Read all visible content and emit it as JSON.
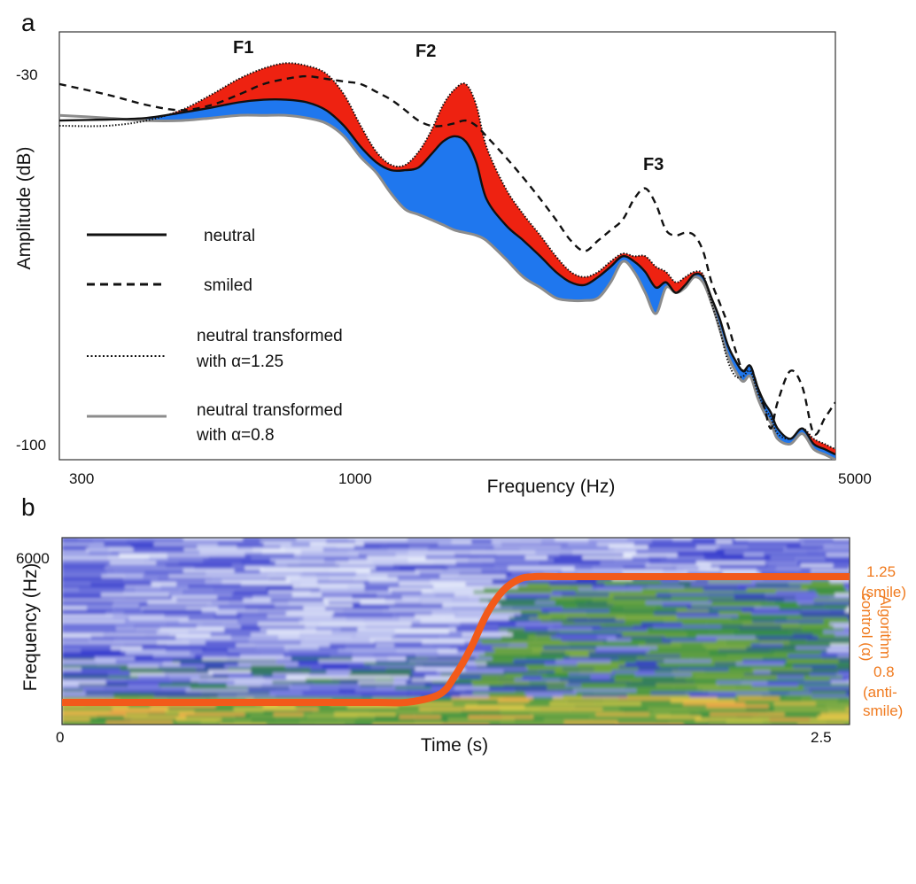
{
  "panel_a": {
    "letter": "a",
    "ylabel": "Amplitude (dB)",
    "xlabel": "Frequency (Hz)",
    "y_ticks": [
      "-30",
      "-100"
    ],
    "x_ticks": [
      "300",
      "1000",
      "5000"
    ],
    "formants": [
      "F1",
      "F2",
      "F3"
    ],
    "legend": [
      {
        "label": "neutral",
        "style": "solid-black"
      },
      {
        "label": "smiled",
        "style": "dashed-black"
      },
      {
        "label": "neutral transformed",
        "label2": "with α=1.25",
        "style": "dotted-black"
      },
      {
        "label": "neutral transformed",
        "label2": "with α=0.8",
        "style": "solid-gray"
      }
    ],
    "colors": {
      "above_neutral": "#ee2211",
      "below_neutral": "#1f77ee"
    }
  },
  "panel_b": {
    "letter": "b",
    "ylabel": "Frequency (Hz)",
    "xlabel": "Time (s)",
    "y_ticks": [
      "6000"
    ],
    "x_ticks": [
      "0",
      "2.5"
    ],
    "right_labels": {
      "high_value": "1.25",
      "high_desc": "(smile)",
      "axis_title_1": "Algorithm",
      "axis_title_2": "control (α)",
      "low_value": "0.8",
      "low_desc_1": "(anti-",
      "low_desc_2": "smile)"
    },
    "control_color": "#f25a1a"
  },
  "chart_data": [
    {
      "type": "line",
      "title": "",
      "xlabel": "Frequency (Hz)",
      "ylabel": "Amplitude (dB)",
      "x_scale": "log",
      "xlim": [
        250,
        5000
      ],
      "ylim": [
        -102,
        -20
      ],
      "grid": false,
      "legend_position": "left",
      "x": [
        250,
        300,
        350,
        400,
        450,
        500,
        550,
        600,
        650,
        700,
        750,
        800,
        850,
        900,
        950,
        1000,
        1050,
        1100,
        1150,
        1200,
        1250,
        1300,
        1400,
        1500,
        1600,
        1700,
        1800,
        1900,
        2000,
        2100,
        2200,
        2300,
        2400,
        2500,
        2600,
        2700,
        2800,
        2900,
        3000,
        3100,
        3200,
        3300,
        3400,
        3500,
        3600,
        3700,
        3800,
        3900,
        4000,
        4200,
        4400,
        4600,
        4800,
        5000
      ],
      "series": [
        {
          "name": "neutral",
          "values": [
            -37,
            -36.8,
            -36.5,
            -35.5,
            -34.5,
            -33.5,
            -33,
            -33,
            -33.5,
            -35,
            -38,
            -42,
            -45,
            -46.5,
            -46.5,
            -46,
            -43.5,
            -41,
            -40,
            -41,
            -45,
            -52,
            -57,
            -60,
            -63,
            -66,
            -68,
            -68.5,
            -67,
            -65,
            -63,
            -64,
            -66,
            -69,
            -68,
            -70,
            -68.5,
            -66.5,
            -67,
            -71,
            -75,
            -80,
            -83,
            -85,
            -84,
            -88,
            -91,
            -93,
            -96,
            -98,
            -96,
            -99,
            -100,
            -101
          ]
        },
        {
          "name": "smiled",
          "values": [
            -30,
            -32,
            -34,
            -35,
            -34,
            -32,
            -30,
            -29,
            -28.5,
            -29,
            -29.5,
            -30,
            -31.5,
            -33,
            -35,
            -37,
            -38,
            -38,
            -37.5,
            -37,
            -38,
            -40,
            -44,
            -48,
            -52,
            -56,
            -60,
            -62,
            -60,
            -58,
            -56,
            -52,
            -50,
            -53,
            -58,
            -59,
            -58.5,
            -59,
            -62,
            -68,
            -72,
            -76,
            -81,
            -85,
            -84,
            -88,
            -92,
            -96,
            -91,
            -85,
            -88,
            -97,
            -94,
            -91
          ]
        },
        {
          "name": "neutral transformed with α=1.25",
          "values": [
            -38,
            -38,
            -37,
            -35,
            -32,
            -29,
            -27,
            -26,
            -26.5,
            -28,
            -32,
            -38,
            -43,
            -45.5,
            -45.5,
            -43,
            -39,
            -34,
            -31,
            -30,
            -34,
            -42,
            -50,
            -55,
            -59,
            -63,
            -66,
            -67,
            -66,
            -64,
            -62.5,
            -63,
            -63,
            -65,
            -66,
            -68,
            -67,
            -66,
            -66.5,
            -72,
            -77,
            -83,
            -86,
            -86,
            -85,
            -89,
            -92,
            -94,
            -97,
            -98,
            -96,
            -98,
            -99,
            -100
          ]
        },
        {
          "name": "neutral transformed with α=0.8",
          "values": [
            -36,
            -36.5,
            -37,
            -37,
            -36.5,
            -36,
            -36,
            -36,
            -36.5,
            -37.5,
            -40,
            -44,
            -47,
            -51,
            -54,
            -55,
            -56,
            -57,
            -58,
            -58.5,
            -59,
            -60,
            -63.5,
            -67,
            -69,
            -71,
            -71.5,
            -71.5,
            -71,
            -68,
            -64,
            -66,
            -70,
            -74,
            -69,
            -70,
            -69,
            -67,
            -68,
            -72,
            -77,
            -82,
            -85,
            -87,
            -86,
            -90,
            -93,
            -95,
            -98,
            -99,
            -97,
            -100,
            -101,
            -102
          ]
        }
      ]
    },
    {
      "type": "heatmap",
      "title": "",
      "xlabel": "Time (s)",
      "ylabel": "Frequency (Hz)",
      "xlim": [
        0,
        2.5
      ],
      "ylim": [
        0,
        6500
      ],
      "y_ticks": [
        6000
      ],
      "grid": false,
      "overlay_series": {
        "name": "Algorithm control (α)",
        "x": [
          0,
          0.2,
          0.4,
          0.6,
          0.8,
          1.0,
          1.1,
          1.2,
          1.25,
          1.3,
          1.35,
          1.4,
          1.45,
          1.5,
          1.6,
          1.8,
          2.0,
          2.2,
          2.4,
          2.5
        ],
        "values": [
          0.8,
          0.8,
          0.8,
          0.8,
          0.8,
          0.8,
          0.801,
          0.83,
          0.9,
          1.0,
          1.12,
          1.2,
          1.24,
          1.25,
          1.25,
          1.25,
          1.25,
          1.25,
          1.25,
          1.25
        ],
        "ylim_alpha": [
          0.8,
          1.25
        ]
      }
    }
  ]
}
